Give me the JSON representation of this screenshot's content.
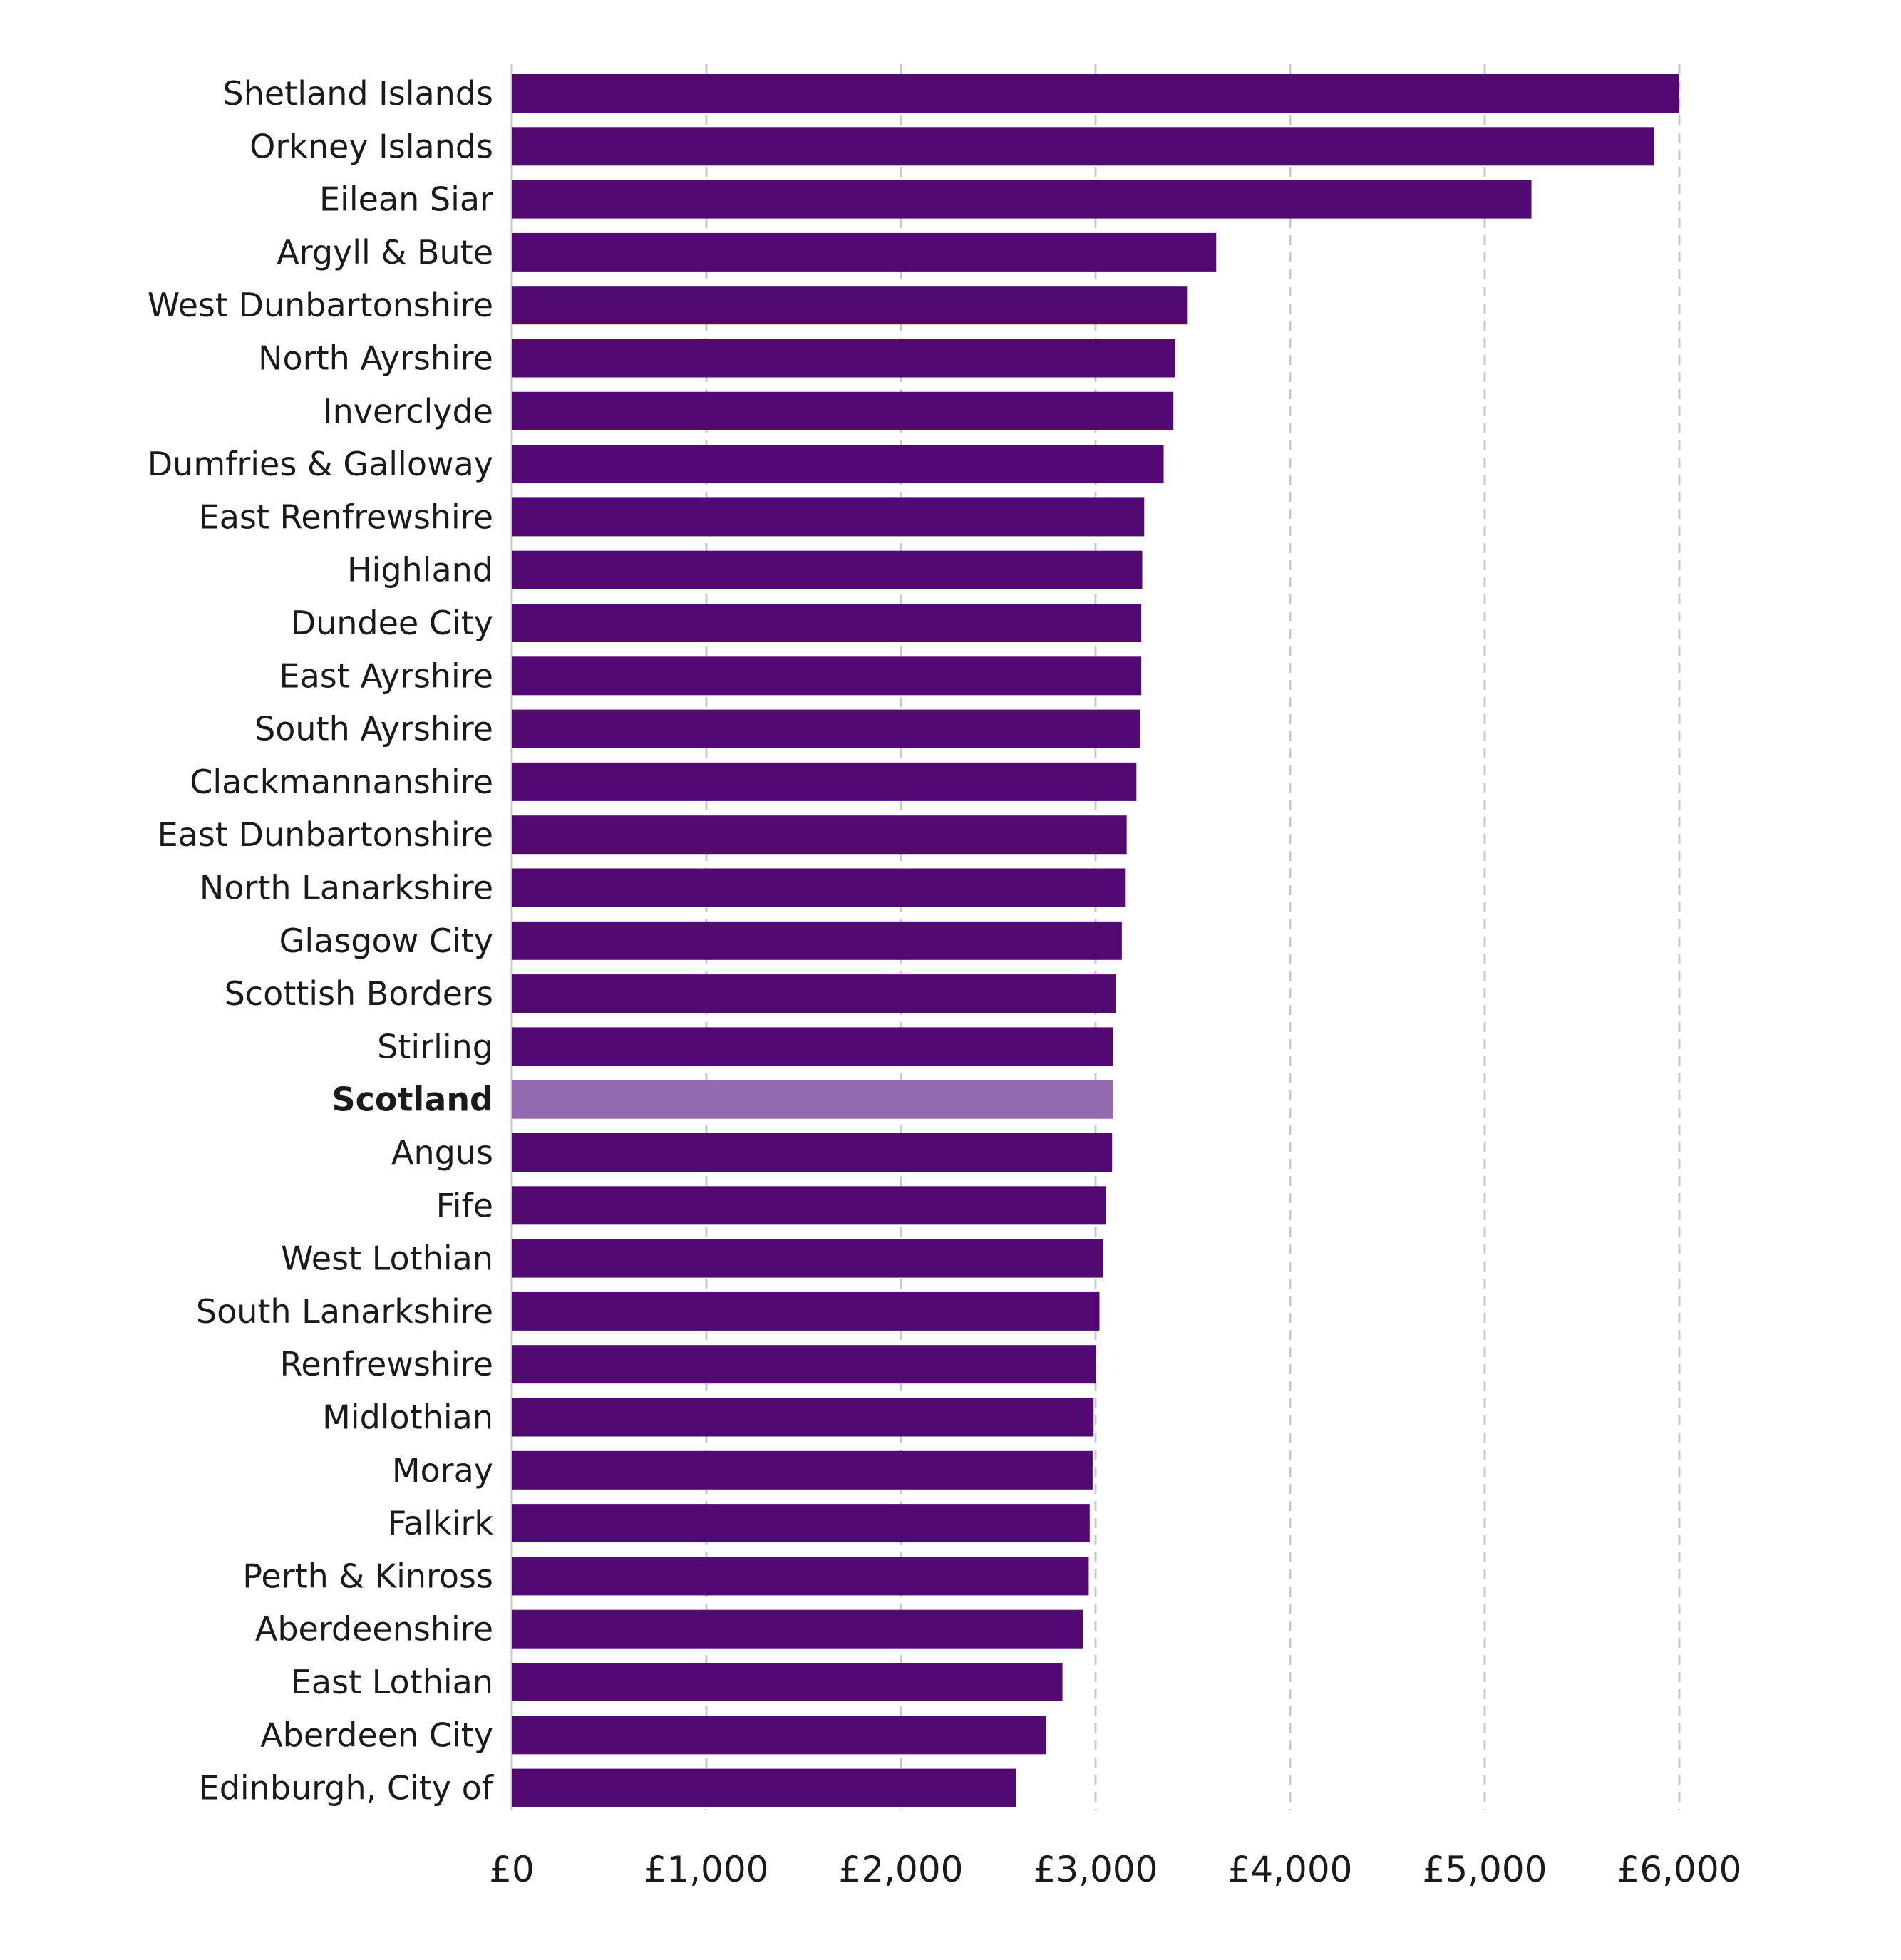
{
  "chart_data": {
    "type": "bar",
    "orientation": "horizontal",
    "categories": [
      "Shetland Islands",
      "Orkney Islands",
      "Eilean Siar",
      "Argyll & Bute",
      "West Dunbartonshire",
      "North Ayrshire",
      "Inverclyde",
      "Dumfries & Galloway",
      "East Renfrewshire",
      "Highland",
      "Dundee City",
      "East Ayrshire",
      "South Ayrshire",
      "Clackmannanshire",
      "East Dunbartonshire",
      "North Lanarkshire",
      "Glasgow City",
      "Scottish Borders",
      "Stirling",
      "Scotland",
      "Angus",
      "Fife",
      "West Lothian",
      "South Lanarkshire",
      "Renfrewshire",
      "Midlothian",
      "Moray",
      "Falkirk",
      "Perth & Kinross",
      "Aberdeenshire",
      "East Lothian",
      "Aberdeen City",
      "Edinburgh, City of"
    ],
    "values": [
      6000,
      5870,
      5240,
      3620,
      3470,
      3410,
      3400,
      3350,
      3250,
      3240,
      3235,
      3235,
      3230,
      3210,
      3160,
      3155,
      3135,
      3105,
      3090,
      3090,
      3085,
      3055,
      3040,
      3020,
      3000,
      2990,
      2985,
      2970,
      2965,
      2935,
      2830,
      2745,
      2590
    ],
    "highlight": "Scotland",
    "colors": {
      "bar": "#520a72",
      "highlight_bar": "#9369b0",
      "grid": "#c8c8c8"
    },
    "xlim": [
      0,
      6000
    ],
    "xticks": [
      0,
      1000,
      2000,
      3000,
      4000,
      5000,
      6000
    ],
    "xtick_labels": [
      "£0",
      "£1,000",
      "£2,000",
      "£3,000",
      "£4,000",
      "£5,000",
      "£6,000"
    ],
    "grid": "vertical dashed",
    "legend": "none"
  }
}
